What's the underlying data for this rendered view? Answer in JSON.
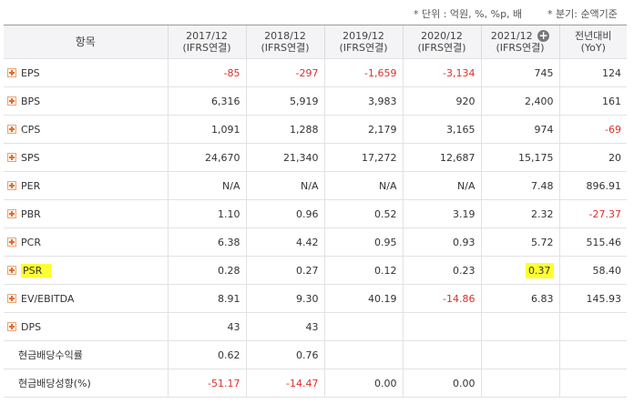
{
  "notes": {
    "unit": "* 단위 : 억원, %, %p, 배",
    "basis": "* 분기: 순액기준"
  },
  "header": {
    "item": "항목",
    "periods": [
      {
        "year": "2017/12",
        "basis": "(IFRS연결)"
      },
      {
        "year": "2018/12",
        "basis": "(IFRS연결)"
      },
      {
        "year": "2019/12",
        "basis": "(IFRS연결)"
      },
      {
        "year": "2020/12",
        "basis": "(IFRS연결)"
      },
      {
        "year": "2021/12",
        "basis": "(IFRS연결)"
      }
    ],
    "yoy_1": "전년대비",
    "yoy_2": "(YoY)"
  },
  "rows": [
    {
      "label": "EPS",
      "values": [
        "-85",
        "-297",
        "-1,659",
        "-3,134",
        "745",
        "124"
      ]
    },
    {
      "label": "BPS",
      "values": [
        "6,316",
        "5,919",
        "3,983",
        "920",
        "2,400",
        "161"
      ]
    },
    {
      "label": "CPS",
      "values": [
        "1,091",
        "1,288",
        "2,179",
        "3,165",
        "974",
        "-69"
      ]
    },
    {
      "label": "SPS",
      "values": [
        "24,670",
        "21,340",
        "17,272",
        "12,687",
        "15,175",
        "20"
      ]
    },
    {
      "label": "PER",
      "values": [
        "N/A",
        "N/A",
        "N/A",
        "N/A",
        "7.48",
        "896.91"
      ]
    },
    {
      "label": "PBR",
      "values": [
        "1.10",
        "0.96",
        "0.52",
        "3.19",
        "2.32",
        "-27.37"
      ]
    },
    {
      "label": "PCR",
      "values": [
        "6.38",
        "4.42",
        "0.95",
        "0.93",
        "5.72",
        "515.46"
      ]
    },
    {
      "label": "PSR",
      "values": [
        "0.28",
        "0.27",
        "0.12",
        "0.23",
        "0.37",
        "58.40"
      ]
    },
    {
      "label": "EV/EBITDA",
      "values": [
        "8.91",
        "9.30",
        "40.19",
        "-14.86",
        "6.83",
        "145.93"
      ]
    },
    {
      "label": "DPS",
      "values": [
        "43",
        "43",
        "",
        "",
        "",
        ""
      ]
    },
    {
      "label": "현금배당수익률",
      "values": [
        "0.62",
        "0.76",
        "",
        "",
        "",
        ""
      ]
    },
    {
      "label": "현금배당성향(%)",
      "values": [
        "-51.17",
        "-14.47",
        "0.00",
        "0.00",
        "",
        ""
      ]
    }
  ]
}
